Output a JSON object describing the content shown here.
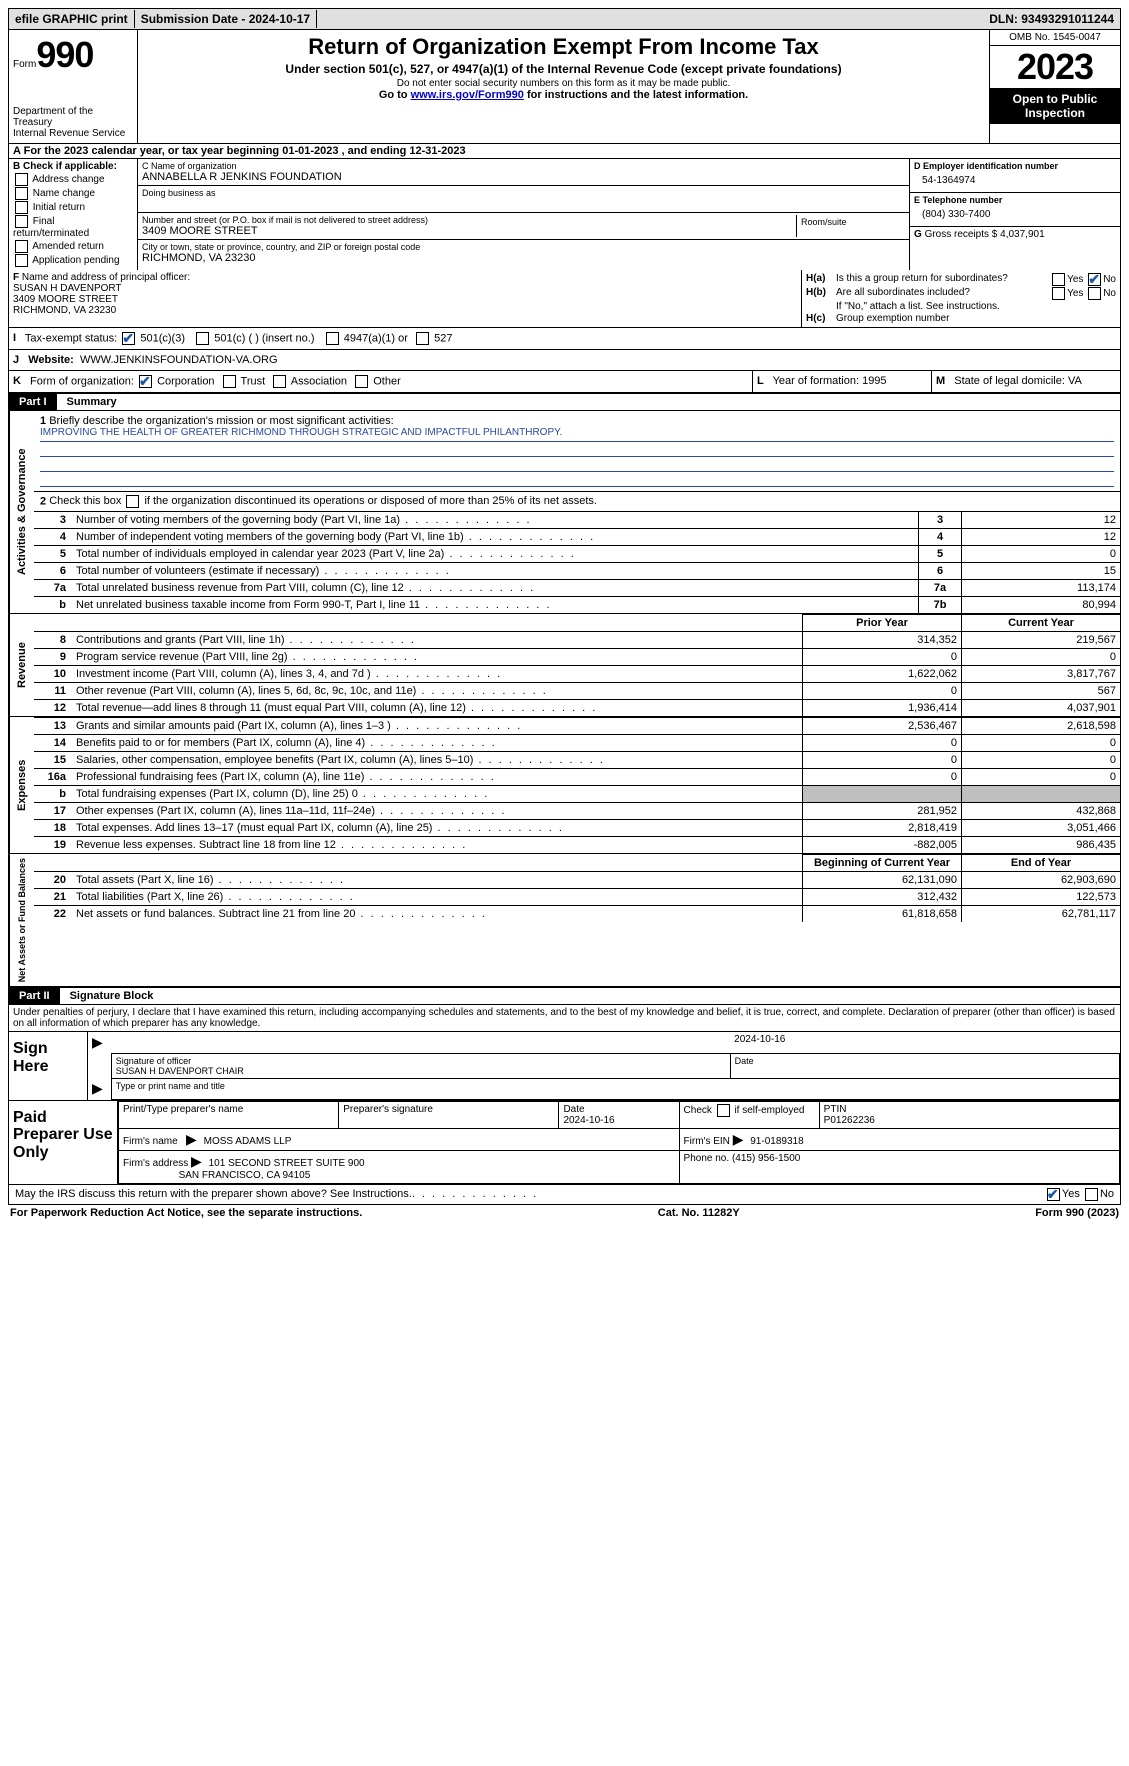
{
  "topbar": {
    "efile": "efile GRAPHIC print",
    "submission_label": "Submission Date - 2024-10-17",
    "dln_label": "DLN: 93493291011244"
  },
  "header": {
    "form_word": "Form",
    "form_number": "990",
    "dept": "Department of the Treasury",
    "irs": "Internal Revenue Service",
    "title": "Return of Organization Exempt From Income Tax",
    "subtitle": "Under section 501(c), 527, or 4947(a)(1) of the Internal Revenue Code (except private foundations)",
    "ssn_note": "Do not enter social security numbers on this form as it may be made public.",
    "goto_prefix": "Go to ",
    "goto_link": "www.irs.gov/Form990",
    "goto_suffix": " for instructions and the latest information.",
    "omb": "OMB No. 1545-0047",
    "year": "2023",
    "open": "Open to Public Inspection"
  },
  "row_a": {
    "label": "A",
    "text": "For the 2023 calendar year, or tax year beginning 01-01-2023   , and ending 12-31-2023"
  },
  "box_b": {
    "header": "B Check if applicable:",
    "opts": [
      "Address change",
      "Name change",
      "Initial return",
      "Final return/terminated",
      "Amended return",
      "Application pending"
    ]
  },
  "box_c": {
    "name_lbl": "C Name of organization",
    "name_val": "ANNABELLA R JENKINS FOUNDATION",
    "dba_lbl": "Doing business as",
    "street_lbl": "Number and street (or P.O. box if mail is not delivered to street address)",
    "street_val": "3409 MOORE STREET",
    "room_lbl": "Room/suite",
    "city_lbl": "City or town, state or province, country, and ZIP or foreign postal code",
    "city_val": "RICHMOND, VA  23230"
  },
  "box_d": {
    "lbl": "D Employer identification number",
    "val": "54-1364974"
  },
  "box_e": {
    "lbl": "E Telephone number",
    "val": "(804) 330-7400"
  },
  "box_g": {
    "lbl": "G",
    "text": "Gross receipts $ 4,037,901"
  },
  "box_f": {
    "lbl": "F",
    "text": "Name and address of principal officer:",
    "name": "SUSAN H DAVENPORT",
    "street": "3409 MOORE STREET",
    "city": "RICHMOND, VA  23230"
  },
  "box_h": {
    "a_lbl": "H(a)",
    "a_text": "Is this a group return for subordinates?",
    "b_lbl": "H(b)",
    "b_text": "Are all subordinates included?",
    "b_note": "If \"No,\" attach a list. See instructions.",
    "c_lbl": "H(c)",
    "c_text": "Group exemption number",
    "yes": "Yes",
    "no": "No"
  },
  "row_i": {
    "lbl": "I",
    "text": "Tax-exempt status:",
    "opt1": "501(c)(3)",
    "opt2": "501(c) (  ) (insert no.)",
    "opt3": "4947(a)(1) or",
    "opt4": "527"
  },
  "row_j": {
    "lbl": "J",
    "text": "Website:",
    "val": "WWW.JENKINSFOUNDATION-VA.ORG"
  },
  "row_k": {
    "lbl": "K",
    "text": "Form of organization:",
    "opts": [
      "Corporation",
      "Trust",
      "Association",
      "Other"
    ]
  },
  "row_l": {
    "lbl": "L",
    "text": "Year of formation: 1995"
  },
  "row_m": {
    "lbl": "M",
    "text": "State of legal domicile: VA"
  },
  "part1": {
    "num": "Part I",
    "title": "Summary",
    "line1_lbl": "1",
    "line1_text": "Briefly describe the organization's mission or most significant activities:",
    "mission": "IMPROVING THE HEALTH OF GREATER RICHMOND THROUGH STRATEGIC AND IMPACTFUL PHILANTHROPY.",
    "line2_lbl": "2",
    "line2_text": "Check this box      if the organization discontinued its operations or disposed of more than 25% of its net assets.",
    "vtab_ag": "Activities & Governance",
    "vtab_rev": "Revenue",
    "vtab_exp": "Expenses",
    "vtab_na": "Net Assets or Fund Balances",
    "prior_year": "Prior Year",
    "current_year": "Current Year",
    "boy": "Beginning of Current Year",
    "eoy": "End of Year",
    "gov_rows": [
      {
        "n": "3",
        "d": "Number of voting members of the governing body (Part VI, line 1a)",
        "k": "3",
        "v": "12"
      },
      {
        "n": "4",
        "d": "Number of independent voting members of the governing body (Part VI, line 1b)",
        "k": "4",
        "v": "12"
      },
      {
        "n": "5",
        "d": "Total number of individuals employed in calendar year 2023 (Part V, line 2a)",
        "k": "5",
        "v": "0"
      },
      {
        "n": "6",
        "d": "Total number of volunteers (estimate if necessary)",
        "k": "6",
        "v": "15"
      },
      {
        "n": "7a",
        "d": "Total unrelated business revenue from Part VIII, column (C), line 12",
        "k": "7a",
        "v": "113,174"
      },
      {
        "n": "b",
        "d": "Net unrelated business taxable income from Form 990-T, Part I, line 11",
        "k": "7b",
        "v": "80,994"
      }
    ],
    "rev_rows": [
      {
        "n": "8",
        "d": "Contributions and grants (Part VIII, line 1h)",
        "py": "314,352",
        "cy": "219,567"
      },
      {
        "n": "9",
        "d": "Program service revenue (Part VIII, line 2g)",
        "py": "0",
        "cy": "0"
      },
      {
        "n": "10",
        "d": "Investment income (Part VIII, column (A), lines 3, 4, and 7d )",
        "py": "1,622,062",
        "cy": "3,817,767"
      },
      {
        "n": "11",
        "d": "Other revenue (Part VIII, column (A), lines 5, 6d, 8c, 9c, 10c, and 11e)",
        "py": "0",
        "cy": "567"
      },
      {
        "n": "12",
        "d": "Total revenue—add lines 8 through 11 (must equal Part VIII, column (A), line 12)",
        "py": "1,936,414",
        "cy": "4,037,901"
      }
    ],
    "exp_rows": [
      {
        "n": "13",
        "d": "Grants and similar amounts paid (Part IX, column (A), lines 1–3 )",
        "py": "2,536,467",
        "cy": "2,618,598"
      },
      {
        "n": "14",
        "d": "Benefits paid to or for members (Part IX, column (A), line 4)",
        "py": "0",
        "cy": "0"
      },
      {
        "n": "15",
        "d": "Salaries, other compensation, employee benefits (Part IX, column (A), lines 5–10)",
        "py": "0",
        "cy": "0"
      },
      {
        "n": "16a",
        "d": "Professional fundraising fees (Part IX, column (A), line 11e)",
        "py": "0",
        "cy": "0"
      },
      {
        "n": "b",
        "d": "Total fundraising expenses (Part IX, column (D), line 25) 0",
        "py": "GREY",
        "cy": "GREY"
      },
      {
        "n": "17",
        "d": "Other expenses (Part IX, column (A), lines 11a–11d, 11f–24e)",
        "py": "281,952",
        "cy": "432,868"
      },
      {
        "n": "18",
        "d": "Total expenses. Add lines 13–17 (must equal Part IX, column (A), line 25)",
        "py": "2,818,419",
        "cy": "3,051,466"
      },
      {
        "n": "19",
        "d": "Revenue less expenses. Subtract line 18 from line 12",
        "py": "-882,005",
        "cy": "986,435"
      }
    ],
    "na_rows": [
      {
        "n": "20",
        "d": "Total assets (Part X, line 16)",
        "py": "62,131,090",
        "cy": "62,903,690"
      },
      {
        "n": "21",
        "d": "Total liabilities (Part X, line 26)",
        "py": "312,432",
        "cy": "122,573"
      },
      {
        "n": "22",
        "d": "Net assets or fund balances. Subtract line 21 from line 20",
        "py": "61,818,658",
        "cy": "62,781,117"
      }
    ]
  },
  "part2": {
    "num": "Part II",
    "title": "Signature Block",
    "declaration": "Under penalties of perjury, I declare that I have examined this return, including accompanying schedules and statements, and to the best of my knowledge and belief, it is true, correct, and complete. Declaration of preparer (other than officer) is based on all information of which preparer has any knowledge."
  },
  "sign": {
    "here": "Sign Here",
    "date": "2024-10-16",
    "sig_officer_lbl": "Signature of officer",
    "officer": "SUSAN H DAVENPORT CHAIR",
    "type_lbl": "Type or print name and title",
    "date_lbl": "Date"
  },
  "paid": {
    "title": "Paid Preparer Use Only",
    "col1": "Print/Type preparer's name",
    "col2": "Preparer's signature",
    "col3_lbl": "Date",
    "col3_val": "2024-10-16",
    "col4": "Check      if self-employed",
    "col5_lbl": "PTIN",
    "col5_val": "P01262236",
    "firm_name_lbl": "Firm's name",
    "firm_name": "MOSS ADAMS LLP",
    "firm_ein_lbl": "Firm's EIN",
    "firm_ein": "91-0189318",
    "firm_addr_lbl": "Firm's address",
    "firm_addr1": "101 SECOND STREET SUITE 900",
    "firm_addr2": "SAN FRANCISCO, CA  94105",
    "phone_lbl": "Phone no.",
    "phone": "(415) 956-1500"
  },
  "footer": {
    "discuss": "May the IRS discuss this return with the preparer shown above? See Instructions.",
    "yes": "Yes",
    "no": "No",
    "paperwork": "For Paperwork Reduction Act Notice, see the separate instructions.",
    "cat": "Cat. No. 11282Y",
    "form": "Form 990 (2023)"
  },
  "colors": {
    "link": "#0000cc",
    "checkmark": "#1a5aa8",
    "underline": "#2a4aa0"
  }
}
